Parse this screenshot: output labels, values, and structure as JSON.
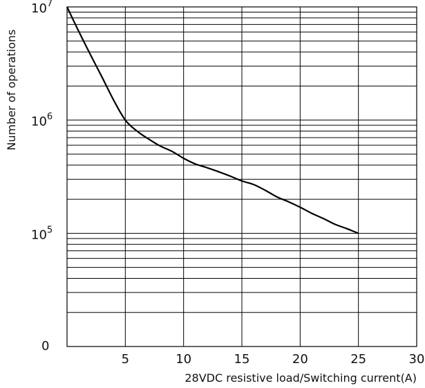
{
  "chart_data": {
    "type": "line",
    "xlabel": "28VDC resistive load/Switching current(A)",
    "ylabel": "Number of operations",
    "xlim": [
      0,
      30
    ],
    "ylim": [
      10000,
      10000000
    ],
    "y_scale": "log",
    "grid": true,
    "x_ticks": [
      "5",
      "10",
      "15",
      "20",
      "25",
      "30"
    ],
    "y_ticks": [
      {
        "base": "0",
        "exp": ""
      },
      {
        "base": "10",
        "exp": "5"
      },
      {
        "base": "10",
        "exp": "6"
      },
      {
        "base": "10",
        "exp": "7"
      }
    ],
    "series": [
      {
        "color": "#000000",
        "x": [
          0,
          1,
          2,
          3,
          4,
          5,
          6,
          7,
          8,
          9,
          10,
          11,
          12,
          13,
          14,
          15,
          16,
          17,
          18,
          19,
          20,
          21,
          22,
          23,
          24,
          25
        ],
        "y": [
          10000000,
          6100000,
          3800000,
          2400000,
          1500000,
          1000000,
          800000,
          680000,
          590000,
          530000,
          460000,
          410000,
          380000,
          350000,
          320000,
          290000,
          270000,
          240000,
          210000,
          190000,
          170000,
          150000,
          135000,
          120000,
          110000,
          100000
        ]
      }
    ]
  }
}
